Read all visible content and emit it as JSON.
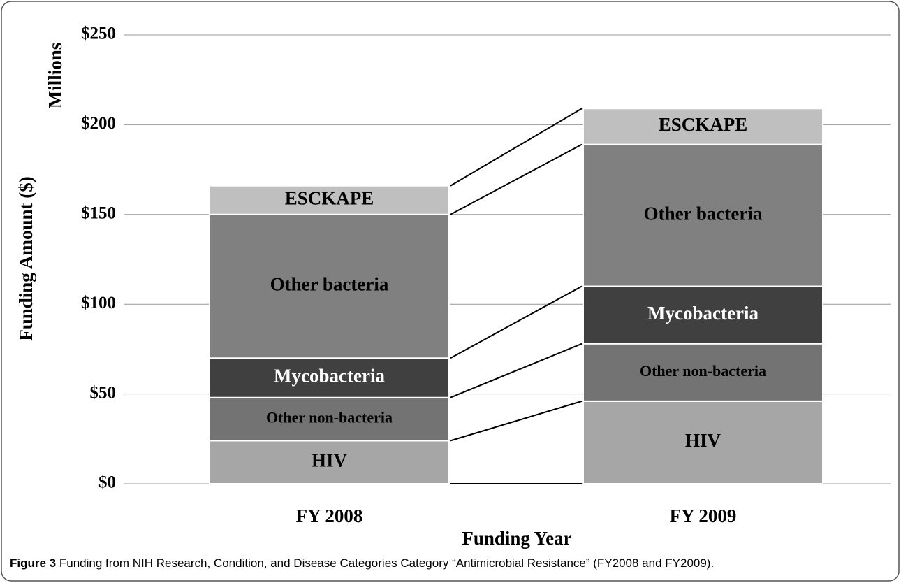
{
  "chart_data": {
    "type": "stacked_bar",
    "ylabel": "Funding Amount ($)",
    "yunit": "Millions",
    "xlabel": "Funding Year",
    "categories": [
      "FY 2008",
      "FY 2009"
    ],
    "series": [
      {
        "name": "HIV",
        "color": "#a6a6a6",
        "label_color": "#000000",
        "values": [
          24,
          46
        ]
      },
      {
        "name": "Other non-bacteria",
        "color": "#737373",
        "label_color": "#000000",
        "values": [
          24,
          32
        ]
      },
      {
        "name": "Mycobacteria",
        "color": "#404040",
        "label_color": "#ffffff",
        "values": [
          22,
          32
        ]
      },
      {
        "name": "Other bacteria",
        "color": "#808080",
        "label_color": "#000000",
        "values": [
          80,
          79
        ]
      },
      {
        "name": "ESCKAPE",
        "color": "#bfbfbf",
        "label_color": "#000000",
        "values": [
          16,
          20
        ]
      }
    ],
    "ylim": [
      0,
      250
    ],
    "yticks": [
      {
        "value": 0,
        "label": "$0"
      },
      {
        "value": 50,
        "label": "$50"
      },
      {
        "value": 100,
        "label": "$100"
      },
      {
        "value": 150,
        "label": "$150"
      },
      {
        "value": 200,
        "label": "$200"
      },
      {
        "value": 250,
        "label": "$250"
      }
    ],
    "grid": true,
    "connector_lines": true
  },
  "caption": {
    "label": "Figure 3",
    "text": "Funding from NIH Research, Condition, and Disease Categories Category “Antimicrobial Resistance” (FY2008 and FY2009)."
  }
}
